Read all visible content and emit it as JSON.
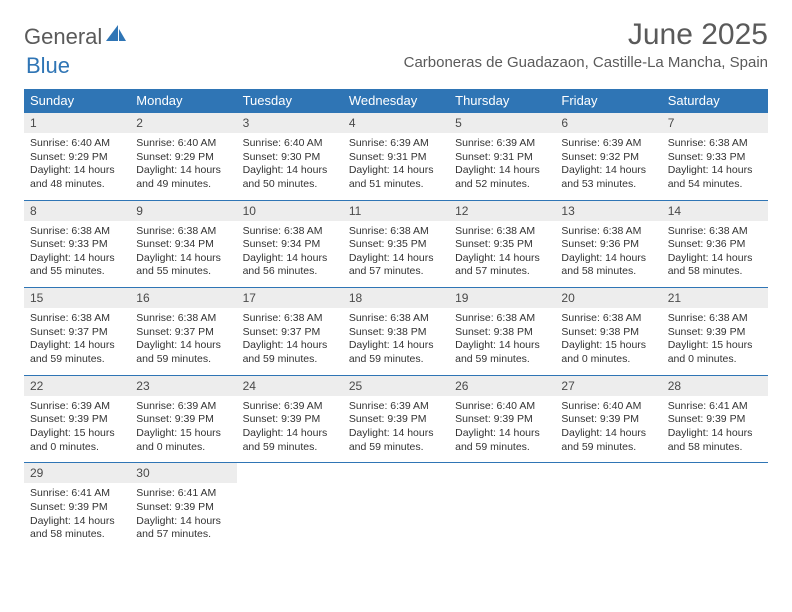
{
  "logo": {
    "part1": "General",
    "part2": "Blue"
  },
  "title": "June 2025",
  "location": "Carboneras de Guadazaon, Castille-La Mancha, Spain",
  "colors": {
    "header_bg": "#2f75b5",
    "header_text": "#ffffff",
    "daynum_bg": "#ededed",
    "border": "#2f75b5",
    "title_color": "#5a5a5a"
  },
  "weekdays": [
    "Sunday",
    "Monday",
    "Tuesday",
    "Wednesday",
    "Thursday",
    "Friday",
    "Saturday"
  ],
  "weeks": [
    [
      {
        "n": "1",
        "sr": "Sunrise: 6:40 AM",
        "ss": "Sunset: 9:29 PM",
        "d1": "Daylight: 14 hours",
        "d2": "and 48 minutes."
      },
      {
        "n": "2",
        "sr": "Sunrise: 6:40 AM",
        "ss": "Sunset: 9:29 PM",
        "d1": "Daylight: 14 hours",
        "d2": "and 49 minutes."
      },
      {
        "n": "3",
        "sr": "Sunrise: 6:40 AM",
        "ss": "Sunset: 9:30 PM",
        "d1": "Daylight: 14 hours",
        "d2": "and 50 minutes."
      },
      {
        "n": "4",
        "sr": "Sunrise: 6:39 AM",
        "ss": "Sunset: 9:31 PM",
        "d1": "Daylight: 14 hours",
        "d2": "and 51 minutes."
      },
      {
        "n": "5",
        "sr": "Sunrise: 6:39 AM",
        "ss": "Sunset: 9:31 PM",
        "d1": "Daylight: 14 hours",
        "d2": "and 52 minutes."
      },
      {
        "n": "6",
        "sr": "Sunrise: 6:39 AM",
        "ss": "Sunset: 9:32 PM",
        "d1": "Daylight: 14 hours",
        "d2": "and 53 minutes."
      },
      {
        "n": "7",
        "sr": "Sunrise: 6:38 AM",
        "ss": "Sunset: 9:33 PM",
        "d1": "Daylight: 14 hours",
        "d2": "and 54 minutes."
      }
    ],
    [
      {
        "n": "8",
        "sr": "Sunrise: 6:38 AM",
        "ss": "Sunset: 9:33 PM",
        "d1": "Daylight: 14 hours",
        "d2": "and 55 minutes."
      },
      {
        "n": "9",
        "sr": "Sunrise: 6:38 AM",
        "ss": "Sunset: 9:34 PM",
        "d1": "Daylight: 14 hours",
        "d2": "and 55 minutes."
      },
      {
        "n": "10",
        "sr": "Sunrise: 6:38 AM",
        "ss": "Sunset: 9:34 PM",
        "d1": "Daylight: 14 hours",
        "d2": "and 56 minutes."
      },
      {
        "n": "11",
        "sr": "Sunrise: 6:38 AM",
        "ss": "Sunset: 9:35 PM",
        "d1": "Daylight: 14 hours",
        "d2": "and 57 minutes."
      },
      {
        "n": "12",
        "sr": "Sunrise: 6:38 AM",
        "ss": "Sunset: 9:35 PM",
        "d1": "Daylight: 14 hours",
        "d2": "and 57 minutes."
      },
      {
        "n": "13",
        "sr": "Sunrise: 6:38 AM",
        "ss": "Sunset: 9:36 PM",
        "d1": "Daylight: 14 hours",
        "d2": "and 58 minutes."
      },
      {
        "n": "14",
        "sr": "Sunrise: 6:38 AM",
        "ss": "Sunset: 9:36 PM",
        "d1": "Daylight: 14 hours",
        "d2": "and 58 minutes."
      }
    ],
    [
      {
        "n": "15",
        "sr": "Sunrise: 6:38 AM",
        "ss": "Sunset: 9:37 PM",
        "d1": "Daylight: 14 hours",
        "d2": "and 59 minutes."
      },
      {
        "n": "16",
        "sr": "Sunrise: 6:38 AM",
        "ss": "Sunset: 9:37 PM",
        "d1": "Daylight: 14 hours",
        "d2": "and 59 minutes."
      },
      {
        "n": "17",
        "sr": "Sunrise: 6:38 AM",
        "ss": "Sunset: 9:37 PM",
        "d1": "Daylight: 14 hours",
        "d2": "and 59 minutes."
      },
      {
        "n": "18",
        "sr": "Sunrise: 6:38 AM",
        "ss": "Sunset: 9:38 PM",
        "d1": "Daylight: 14 hours",
        "d2": "and 59 minutes."
      },
      {
        "n": "19",
        "sr": "Sunrise: 6:38 AM",
        "ss": "Sunset: 9:38 PM",
        "d1": "Daylight: 14 hours",
        "d2": "and 59 minutes."
      },
      {
        "n": "20",
        "sr": "Sunrise: 6:38 AM",
        "ss": "Sunset: 9:38 PM",
        "d1": "Daylight: 15 hours",
        "d2": "and 0 minutes."
      },
      {
        "n": "21",
        "sr": "Sunrise: 6:38 AM",
        "ss": "Sunset: 9:39 PM",
        "d1": "Daylight: 15 hours",
        "d2": "and 0 minutes."
      }
    ],
    [
      {
        "n": "22",
        "sr": "Sunrise: 6:39 AM",
        "ss": "Sunset: 9:39 PM",
        "d1": "Daylight: 15 hours",
        "d2": "and 0 minutes."
      },
      {
        "n": "23",
        "sr": "Sunrise: 6:39 AM",
        "ss": "Sunset: 9:39 PM",
        "d1": "Daylight: 15 hours",
        "d2": "and 0 minutes."
      },
      {
        "n": "24",
        "sr": "Sunrise: 6:39 AM",
        "ss": "Sunset: 9:39 PM",
        "d1": "Daylight: 14 hours",
        "d2": "and 59 minutes."
      },
      {
        "n": "25",
        "sr": "Sunrise: 6:39 AM",
        "ss": "Sunset: 9:39 PM",
        "d1": "Daylight: 14 hours",
        "d2": "and 59 minutes."
      },
      {
        "n": "26",
        "sr": "Sunrise: 6:40 AM",
        "ss": "Sunset: 9:39 PM",
        "d1": "Daylight: 14 hours",
        "d2": "and 59 minutes."
      },
      {
        "n": "27",
        "sr": "Sunrise: 6:40 AM",
        "ss": "Sunset: 9:39 PM",
        "d1": "Daylight: 14 hours",
        "d2": "and 59 minutes."
      },
      {
        "n": "28",
        "sr": "Sunrise: 6:41 AM",
        "ss": "Sunset: 9:39 PM",
        "d1": "Daylight: 14 hours",
        "d2": "and 58 minutes."
      }
    ],
    [
      {
        "n": "29",
        "sr": "Sunrise: 6:41 AM",
        "ss": "Sunset: 9:39 PM",
        "d1": "Daylight: 14 hours",
        "d2": "and 58 minutes."
      },
      {
        "n": "30",
        "sr": "Sunrise: 6:41 AM",
        "ss": "Sunset: 9:39 PM",
        "d1": "Daylight: 14 hours",
        "d2": "and 57 minutes."
      },
      null,
      null,
      null,
      null,
      null
    ]
  ]
}
